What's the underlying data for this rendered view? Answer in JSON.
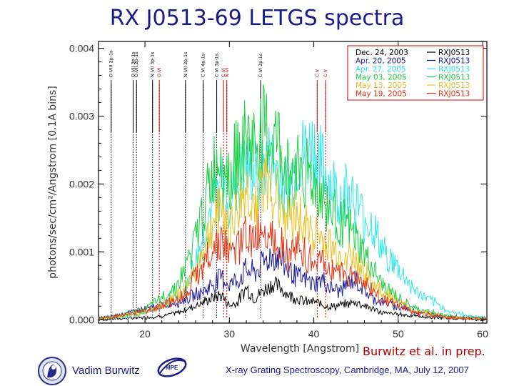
{
  "slide": {
    "title": "RX J0513-69 LETGS spectra",
    "credit": "Burwitz et al. in prep.",
    "footer": "X-ray Grating Spectroscopy, Cambridge, MA, July 12, 2007",
    "author": "Vadim Burwitz",
    "logo_mpe_text": "MPE"
  },
  "chart_data": {
    "type": "line",
    "xlabel": "Wavelength [Angstrom]",
    "ylabel": "photons/sec/cm²/Angstrom [0.1A bins]",
    "xlim": [
      14.5,
      60.5
    ],
    "ylim": [
      -5e-05,
      0.0041
    ],
    "xticks": [
      20,
      30,
      40,
      50,
      60
    ],
    "xtick_labels": [
      "20",
      "30",
      "40",
      "50",
      "60"
    ],
    "yticks": [
      0.0,
      0.001,
      0.002,
      0.003,
      0.004
    ],
    "ytick_labels": [
      "0.000",
      "0.001",
      "0.002",
      "0.003",
      "0.004"
    ],
    "legend": {
      "placement": "top-right",
      "entries": [
        {
          "date": "Dec. 24, 2003",
          "label": "RXJ0513",
          "color": "#000000"
        },
        {
          "date": "Apr. 20, 2005",
          "label": "RXJ0513",
          "color": "#1c1c9c"
        },
        {
          "date": "Apr. 27, 2005",
          "label": "RXJ0513",
          "color": "#30e8e8"
        },
        {
          "date": "May 03, 2005",
          "label": "RXJ0513",
          "color": "#18d040"
        },
        {
          "date": "May 13, 2005",
          "label": "RXJ0513",
          "color": "#e8c020"
        },
        {
          "date": "May 19, 2005",
          "label": "RXJ0513",
          "color": "#e83010"
        }
      ]
    },
    "line_ids": [
      {
        "label": "O VIII 2p-1s",
        "x": 16.0,
        "color": "#000000"
      },
      {
        "label": "O VII 3p-1s",
        "x": 18.6,
        "color": "#000000"
      },
      {
        "label": "O VII 2p-1s",
        "x": 19.0,
        "color": "#000000"
      },
      {
        "label": "N VII 3p-1s",
        "x": 20.9,
        "color": "#000000"
      },
      {
        "label": "O VI",
        "x": 21.7,
        "color": "#cc0000"
      },
      {
        "label": "N VII 2p-1s",
        "x": 24.8,
        "color": "#000000"
      },
      {
        "label": "C VI 4p-1s",
        "x": 26.9,
        "color": "#000000"
      },
      {
        "label": "C VI 3p-1s",
        "x": 28.5,
        "color": "#000000"
      },
      {
        "label": "C VI",
        "x": 29.3,
        "color": "#cc0000"
      },
      {
        "label": "N VI",
        "x": 29.7,
        "color": "#cc0000"
      },
      {
        "label": "C VI 2p-1s",
        "x": 33.7,
        "color": "#000000"
      },
      {
        "label": "C V",
        "x": 40.4,
        "color": "#cc0000"
      },
      {
        "label": "C V",
        "x": 41.4,
        "color": "#cc0000"
      }
    ],
    "series_envelope": {
      "x": [
        14.5,
        16,
        18,
        20,
        22,
        24,
        25,
        26,
        27,
        28,
        29,
        30,
        31,
        32,
        33,
        34,
        35,
        36,
        37,
        38,
        39,
        40,
        41,
        42,
        43,
        44,
        45,
        46,
        47,
        48,
        50,
        52,
        54,
        56,
        58,
        60.5
      ]
    },
    "series": [
      {
        "name": "Dec. 24, 2003",
        "color": "#000000",
        "values": [
          0.0,
          1e-05,
          2e-05,
          3e-05,
          5e-05,
          0.0001,
          0.00015,
          0.0002,
          0.00025,
          0.0003,
          0.00035,
          0.0002,
          0.00025,
          0.00045,
          0.0003,
          0.0004,
          0.0005,
          0.00045,
          0.00035,
          0.0003,
          0.00025,
          0.00025,
          0.00022,
          0.00018,
          0.0002,
          0.00022,
          0.00025,
          0.0002,
          0.00015,
          0.0001,
          8e-05,
          5e-05,
          3e-05,
          2e-05,
          1e-05,
          0.0
        ]
      },
      {
        "name": "Apr. 20, 2005",
        "color": "#1c1c9c",
        "values": [
          2e-05,
          5e-05,
          0.0001,
          0.00015,
          0.0002,
          0.00025,
          0.0003,
          0.00035,
          0.0004,
          0.0005,
          0.0006,
          0.0005,
          0.00055,
          0.0007,
          0.00065,
          0.0008,
          0.0009,
          0.00085,
          0.0007,
          0.0006,
          0.00055,
          0.0005,
          0.00055,
          0.00045,
          0.0004,
          0.0005,
          0.00055,
          0.0004,
          0.0003,
          0.00025,
          0.00018,
          0.00012,
          8e-05,
          5e-05,
          3e-05,
          2e-05
        ]
      },
      {
        "name": "Apr. 27, 2005",
        "color": "#30e8e8",
        "values": [
          2e-05,
          3e-05,
          5e-05,
          0.0001,
          0.0002,
          0.0003,
          0.0005,
          0.0008,
          0.0012,
          0.0016,
          0.0019,
          0.0017,
          0.0019,
          0.0021,
          0.002,
          0.0021,
          0.0022,
          0.002,
          0.0018,
          0.0022,
          0.0023,
          0.0024,
          0.0021,
          0.0019,
          0.0017,
          0.0018,
          0.0016,
          0.0014,
          0.0013,
          0.001,
          0.0007,
          0.0004,
          0.00025,
          0.00012,
          6e-05,
          3e-05
        ]
      },
      {
        "name": "May 03, 2005",
        "color": "#18d040",
        "values": [
          2e-05,
          4e-05,
          8e-05,
          0.00015,
          0.0003,
          0.0005,
          0.0008,
          0.0011,
          0.0016,
          0.002,
          0.0024,
          0.002,
          0.0023,
          0.0025,
          0.0024,
          0.0026,
          0.0025,
          0.0024,
          0.002,
          0.0022,
          0.0021,
          0.0019,
          0.0017,
          0.0015,
          0.0014,
          0.0013,
          0.0011,
          0.0009,
          0.0007,
          0.0005,
          0.0003,
          0.00015,
          0.0001,
          5e-05,
          3e-05,
          2e-05
        ]
      },
      {
        "name": "May 13, 2005",
        "color": "#e8c020",
        "values": [
          2e-05,
          3e-05,
          6e-05,
          0.0001,
          0.0002,
          0.00035,
          0.0005,
          0.0007,
          0.001,
          0.0013,
          0.0016,
          0.0013,
          0.0015,
          0.0018,
          0.0016,
          0.0019,
          0.0018,
          0.0017,
          0.0014,
          0.0015,
          0.0013,
          0.0012,
          0.0011,
          0.001,
          0.0009,
          0.0009,
          0.0008,
          0.0007,
          0.0005,
          0.0004,
          0.00025,
          0.00012,
          8e-05,
          4e-05,
          2e-05,
          1e-05
        ]
      },
      {
        "name": "May 19, 2005",
        "color": "#e83010",
        "values": [
          2e-05,
          4e-05,
          8e-05,
          0.00012,
          0.0002,
          0.0003,
          0.0004,
          0.0006,
          0.0008,
          0.001,
          0.0011,
          0.0009,
          0.001,
          0.0012,
          0.0011,
          0.0013,
          0.0012,
          0.0011,
          0.0009,
          0.001,
          0.0009,
          0.0008,
          0.0008,
          0.0007,
          0.0007,
          0.0006,
          0.0006,
          0.0005,
          0.0004,
          0.0003,
          0.0002,
          0.0001,
          6e-05,
          3e-05,
          2e-05,
          1e-05
        ]
      }
    ]
  }
}
